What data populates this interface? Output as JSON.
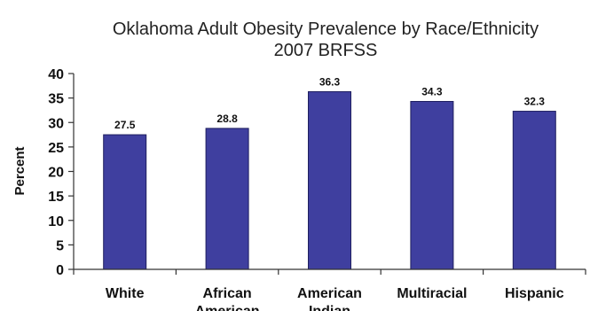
{
  "chart_data": {
    "type": "bar",
    "title": "Oklahoma Adult Obesity  Prevalence by Race/Ethnicity",
    "subtitle": "2007 BRFSS",
    "xlabel": "",
    "ylabel": "Percent",
    "ylim": [
      0,
      40
    ],
    "yticks": [
      "0",
      "5",
      "10",
      "15",
      "20",
      "25",
      "30",
      "35",
      "40"
    ],
    "categories": [
      "White",
      "African American",
      "American Indian",
      "Multiracial",
      "Hispanic"
    ],
    "category_lines": [
      [
        "White"
      ],
      [
        "African",
        "American"
      ],
      [
        "American",
        "Indian"
      ],
      [
        "Multiracial"
      ],
      [
        "Hispanic"
      ]
    ],
    "values": [
      27.5,
      28.8,
      36.3,
      34.3,
      32.3
    ],
    "value_labels": [
      "27.5",
      "28.8",
      "36.3",
      "34.3",
      "32.3"
    ],
    "bar_color": "#3f3f9f",
    "bar_edge_color": "#1f1f5f",
    "grid": false,
    "legend": "none"
  }
}
